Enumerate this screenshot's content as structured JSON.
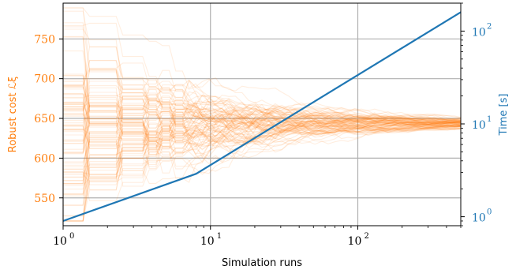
{
  "chart_data": {
    "type": "line",
    "xlabel": "Simulation runs",
    "ylabel_left": "Robust cost ℒξ",
    "ylabel_right": "Time [s]",
    "x_scale": "log",
    "xlim": [
      1,
      500
    ],
    "ylim_left": [
      515,
      795
    ],
    "ylim_right_log": [
      0.8,
      200
    ],
    "grid": true,
    "colors": {
      "cost": "#ff7f0e",
      "time": "#1f77b4"
    },
    "x_ticks": [
      {
        "value": 1,
        "base": "10",
        "exp": "0"
      },
      {
        "value": 10,
        "base": "10",
        "exp": "1"
      },
      {
        "value": 100,
        "base": "10",
        "exp": "2"
      }
    ],
    "y_ticks_left": [
      "550",
      "600",
      "650",
      "700",
      "750"
    ],
    "y_ticks_right": [
      {
        "value": 1,
        "base": "10",
        "exp": "0"
      },
      {
        "value": 10,
        "base": "10",
        "exp": "1"
      },
      {
        "value": 100,
        "base": "10",
        "exp": "2"
      }
    ],
    "cost_band": {
      "n_runs_plotted": 100,
      "converged_value": 643,
      "spread_at_x1": [
        535,
        775
      ],
      "spread_at_x10": [
        600,
        700
      ],
      "spread_at_x100": [
        628,
        660
      ],
      "spread_at_x500": [
        639,
        647
      ]
    },
    "series": [
      {
        "x": [
          1,
          8,
          500
        ],
        "y": [
          0.9,
          2.9,
          160
        ]
      }
    ]
  }
}
